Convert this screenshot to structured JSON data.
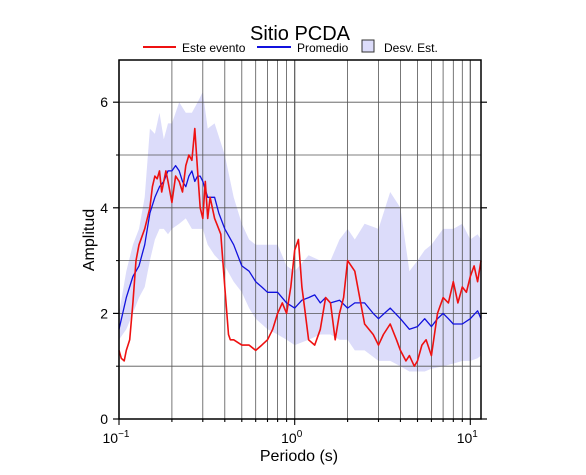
{
  "chart_data": {
    "type": "line",
    "title": "Sitio PCDA",
    "xlabel": "Periodo (s)",
    "ylabel": "Amplitud",
    "x_scale": "log",
    "xlim": [
      0.1,
      11.5
    ],
    "ylim": [
      0,
      6.8
    ],
    "x_ticks": [
      {
        "value": 0.1,
        "base": "10",
        "exp": "−1"
      },
      {
        "value": 1,
        "base": "10",
        "exp": "0"
      },
      {
        "value": 10,
        "base": "10",
        "exp": "1"
      }
    ],
    "y_ticks": [
      0,
      2,
      4,
      6
    ],
    "grid": true,
    "legend_position": "top",
    "legend": [
      {
        "label": "Este evento",
        "color": "#ee1111",
        "kind": "line"
      },
      {
        "label": "Promedio",
        "color": "#1111dd",
        "kind": "line"
      },
      {
        "label": "Desv. Est.",
        "color": "#dcdcfa",
        "kind": "box"
      }
    ],
    "series": [
      {
        "name": "Este evento",
        "color": "#ee1111",
        "x": [
          0.1,
          0.103,
          0.107,
          0.11,
          0.115,
          0.12,
          0.125,
          0.13,
          0.14,
          0.15,
          0.155,
          0.16,
          0.165,
          0.17,
          0.175,
          0.18,
          0.185,
          0.19,
          0.2,
          0.21,
          0.22,
          0.23,
          0.24,
          0.25,
          0.26,
          0.27,
          0.28,
          0.29,
          0.3,
          0.31,
          0.32,
          0.33,
          0.35,
          0.36,
          0.38,
          0.4,
          0.42,
          0.43,
          0.45,
          0.5,
          0.55,
          0.6,
          0.65,
          0.7,
          0.75,
          0.8,
          0.85,
          0.9,
          0.95,
          1.0,
          1.05,
          1.1,
          1.15,
          1.2,
          1.3,
          1.4,
          1.5,
          1.6,
          1.7,
          1.8,
          1.9,
          2.0,
          2.2,
          2.5,
          2.8,
          3.0,
          3.2,
          3.5,
          3.8,
          4.0,
          4.3,
          4.5,
          4.8,
          5.0,
          5.3,
          5.6,
          6.0,
          6.5,
          7.0,
          7.5,
          8.0,
          8.5,
          9.0,
          9.5,
          10.0,
          10.5,
          11.0,
          11.5
        ],
        "values": [
          1.3,
          1.15,
          1.1,
          1.3,
          1.5,
          2.2,
          3.0,
          3.3,
          3.6,
          4.0,
          4.4,
          4.6,
          4.55,
          4.7,
          4.3,
          4.5,
          4.7,
          4.5,
          4.1,
          4.6,
          4.5,
          4.3,
          4.8,
          5.0,
          4.9,
          5.5,
          4.7,
          4.0,
          3.8,
          4.5,
          3.8,
          4.2,
          3.8,
          3.7,
          3.5,
          2.5,
          1.6,
          1.5,
          1.5,
          1.4,
          1.4,
          1.3,
          1.4,
          1.5,
          1.7,
          2.0,
          2.2,
          2.0,
          2.5,
          3.2,
          3.4,
          2.5,
          2.0,
          1.5,
          1.4,
          1.7,
          2.3,
          2.2,
          1.5,
          2.0,
          2.3,
          3.0,
          2.8,
          1.8,
          1.6,
          1.4,
          1.6,
          1.8,
          1.5,
          1.3,
          1.1,
          1.2,
          1.0,
          1.1,
          1.4,
          1.5,
          1.2,
          2.0,
          2.3,
          2.2,
          2.6,
          2.2,
          2.5,
          2.4,
          2.7,
          2.9,
          2.6,
          3.0
        ]
      },
      {
        "name": "Promedio",
        "color": "#1111dd",
        "x": [
          0.1,
          0.105,
          0.11,
          0.12,
          0.13,
          0.14,
          0.15,
          0.16,
          0.17,
          0.18,
          0.19,
          0.2,
          0.21,
          0.22,
          0.23,
          0.24,
          0.25,
          0.26,
          0.27,
          0.28,
          0.29,
          0.3,
          0.32,
          0.35,
          0.37,
          0.4,
          0.45,
          0.5,
          0.55,
          0.6,
          0.65,
          0.7,
          0.8,
          0.9,
          1.0,
          1.1,
          1.2,
          1.3,
          1.4,
          1.5,
          1.6,
          1.8,
          2.0,
          2.2,
          2.5,
          2.8,
          3.0,
          3.5,
          4.0,
          4.5,
          5.0,
          5.5,
          6.0,
          6.5,
          7.0,
          7.5,
          8.0,
          9.0,
          10.0,
          11.0,
          11.5
        ],
        "values": [
          1.7,
          2.0,
          2.3,
          2.7,
          2.9,
          3.3,
          3.9,
          4.2,
          4.4,
          4.5,
          4.7,
          4.7,
          4.8,
          4.7,
          4.5,
          4.4,
          4.6,
          4.7,
          4.5,
          4.6,
          4.6,
          4.5,
          4.2,
          4.2,
          3.9,
          3.6,
          3.3,
          2.9,
          2.8,
          2.6,
          2.5,
          2.4,
          2.4,
          2.2,
          2.1,
          2.25,
          2.3,
          2.35,
          2.2,
          2.3,
          2.2,
          2.25,
          2.1,
          2.2,
          2.2,
          2.0,
          1.9,
          2.1,
          1.9,
          1.7,
          1.75,
          1.9,
          1.75,
          1.9,
          2.0,
          1.9,
          1.8,
          1.8,
          1.9,
          2.05,
          1.9
        ]
      }
    ],
    "std_band": {
      "name": "Desv. Est.",
      "color": "#dcdcfa",
      "x": [
        0.1,
        0.11,
        0.12,
        0.13,
        0.14,
        0.15,
        0.16,
        0.17,
        0.18,
        0.19,
        0.2,
        0.22,
        0.24,
        0.26,
        0.28,
        0.3,
        0.32,
        0.35,
        0.4,
        0.45,
        0.5,
        0.55,
        0.6,
        0.7,
        0.8,
        0.9,
        1.0,
        1.2,
        1.4,
        1.6,
        1.8,
        2.0,
        2.2,
        2.5,
        3.0,
        3.5,
        4.0,
        4.5,
        5.0,
        5.5,
        6.0,
        7.0,
        8.0,
        9.0,
        10.0,
        11.0,
        11.5
      ],
      "upper": [
        2.0,
        2.8,
        3.3,
        3.6,
        4.2,
        5.5,
        5.4,
        5.8,
        5.3,
        5.6,
        5.6,
        6.0,
        5.8,
        5.8,
        6.0,
        6.2,
        5.5,
        5.6,
        5.0,
        4.2,
        3.7,
        3.4,
        3.3,
        3.3,
        3.3,
        2.9,
        2.8,
        3.1,
        3.0,
        3.0,
        3.4,
        3.6,
        3.4,
        3.7,
        3.6,
        4.3,
        4.0,
        2.8,
        3.0,
        3.2,
        3.3,
        3.6,
        3.6,
        3.7,
        3.4,
        3.5,
        3.4
      ],
      "lower": [
        1.5,
        1.7,
        2.0,
        2.3,
        2.5,
        3.0,
        3.4,
        3.6,
        3.6,
        3.5,
        3.6,
        3.7,
        3.8,
        3.6,
        3.6,
        3.6,
        3.3,
        3.1,
        2.9,
        2.6,
        2.4,
        2.1,
        1.9,
        1.7,
        1.6,
        1.5,
        1.4,
        1.5,
        1.6,
        1.6,
        1.5,
        1.5,
        1.3,
        1.3,
        1.1,
        1.1,
        1.0,
        0.9,
        0.9,
        0.9,
        0.95,
        1.0,
        1.05,
        1.1,
        1.1,
        1.15,
        1.2
      ]
    }
  }
}
